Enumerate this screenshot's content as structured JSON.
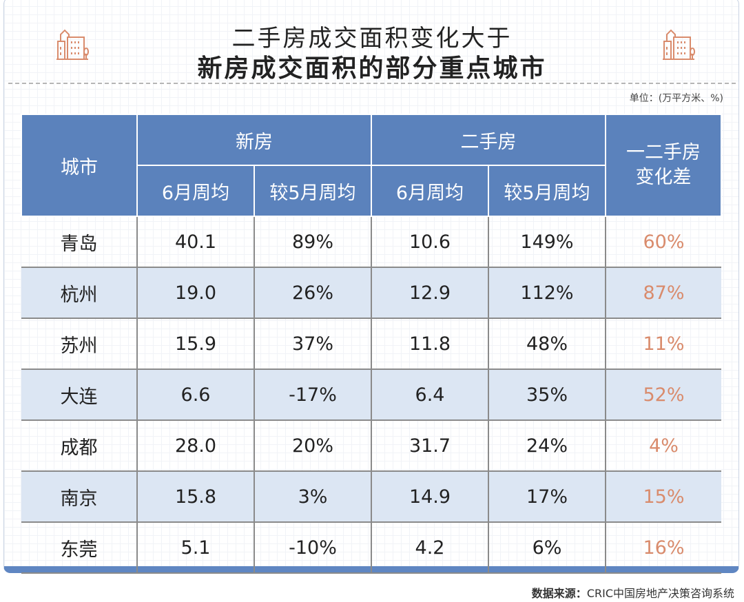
{
  "title_line1": "二手房成交面积变化大于",
  "title_line2": "新房成交面积的部分重点城市",
  "unit": "单位：(万平方米、%)",
  "headers": {
    "city": "城市",
    "new": "新房",
    "second": "二手房",
    "diff": "一二手房变化差",
    "june": "6月周均",
    "vs_may": "较5月周均"
  },
  "rows": [
    {
      "city": "青岛",
      "new_june": "40.1",
      "new_vs": "89%",
      "sec_june": "10.6",
      "sec_vs": "149%",
      "diff": "60%"
    },
    {
      "city": "杭州",
      "new_june": "19.0",
      "new_vs": "26%",
      "sec_june": "12.9",
      "sec_vs": "112%",
      "diff": "87%"
    },
    {
      "city": "苏州",
      "new_june": "15.9",
      "new_vs": "37%",
      "sec_june": "11.8",
      "sec_vs": "48%",
      "diff": "11%"
    },
    {
      "city": "大连",
      "new_june": "6.6",
      "new_vs": "-17%",
      "sec_june": "6.4",
      "sec_vs": "35%",
      "diff": "52%"
    },
    {
      "city": "成都",
      "new_june": "28.0",
      "new_vs": "20%",
      "sec_june": "31.7",
      "sec_vs": "24%",
      "diff": "4%"
    },
    {
      "city": "南京",
      "new_june": "15.8",
      "new_vs": "3%",
      "sec_june": "14.9",
      "sec_vs": "17%",
      "diff": "15%"
    },
    {
      "city": "东莞",
      "new_june": "5.1",
      "new_vs": "-10%",
      "sec_june": "4.2",
      "sec_vs": "6%",
      "diff": "16%"
    }
  ],
  "source_label": "数据来源：",
  "source": "CRIC中国房地产决策咨询系统",
  "colors": {
    "header": "#5b82bc",
    "alt_row": "#dce6f3",
    "diff_text": "#d98b6c",
    "icon": "#d98b6c"
  }
}
